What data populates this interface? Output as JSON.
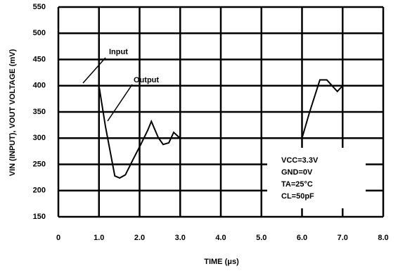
{
  "chart_data": {
    "type": "line",
    "xlabel": "TIME (μs)",
    "ylabel": "VIN (INPUT), VOUT VOLTAGE (mV)",
    "xlim": [
      0,
      8.0
    ],
    "xticks": [
      0,
      {
        "value": 1.0,
        "label": "1.0"
      },
      {
        "value": 2.0,
        "label": "2.0"
      },
      {
        "value": 3.0,
        "label": "3.0"
      },
      {
        "value": 4.0,
        "label": "4.0"
      },
      {
        "value": 5.0,
        "label": "5.0"
      },
      {
        "value": 6.0,
        "label": "6.0"
      },
      {
        "value": 7.0,
        "label": "7.0"
      },
      {
        "value": 8.0,
        "label": "8.0"
      }
    ],
    "ylim": [
      150,
      550
    ],
    "yticks": [
      150,
      200,
      250,
      300,
      350,
      400,
      450,
      500,
      550
    ],
    "grid": true,
    "series": [
      {
        "name": "Input",
        "color": "#000000",
        "x": [
          0,
          1.0,
          null,
          6.0,
          6.0,
          8.0
        ],
        "values": [
          400,
          400,
          null,
          300,
          400,
          400
        ]
      },
      {
        "name": "Output",
        "color": "#000000",
        "x": [
          1.0,
          1.16,
          1.39,
          1.51,
          1.65,
          1.85,
          2.03,
          2.2,
          2.29,
          2.46,
          2.58,
          2.72,
          2.84,
          2.98,
          null,
          6.0,
          6.18,
          6.44,
          6.61,
          6.87,
          7.0
        ],
        "values": [
          400,
          322,
          228,
          224,
          230,
          261,
          288,
          315,
          332,
          301,
          288,
          291,
          311,
          301,
          null,
          300,
          348,
          411,
          411,
          389,
          400
        ]
      }
    ],
    "conditions": [
      "VCC=3.3V",
      "GND=0V",
      "TA=25°C",
      "CL=50pF"
    ]
  }
}
